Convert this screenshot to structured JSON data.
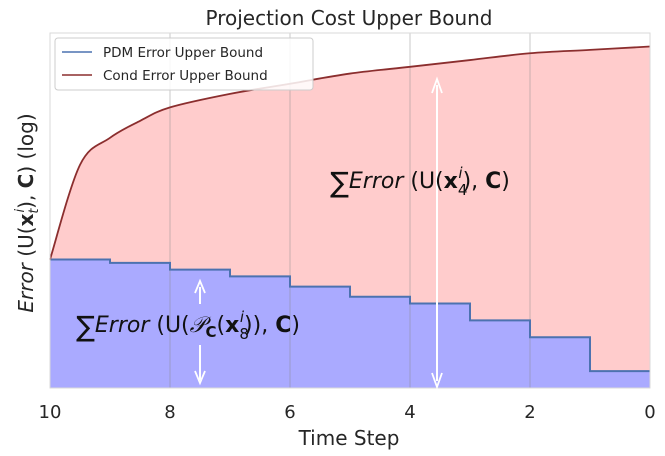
{
  "chart_data": {
    "type": "area",
    "title": "Projection Cost Upper Bound",
    "xlabel": "Time Step",
    "ylabel": "Error (U(x_t^i), C) (log)",
    "xlim": [
      10,
      0
    ],
    "x_ticks": [
      "10",
      "8",
      "6",
      "4",
      "2",
      "0"
    ],
    "y_scale": "log",
    "grid": "vertical",
    "legend_position": "top-left",
    "series": [
      {
        "name": "PDM Error Upper Bound",
        "color": "#4c72b0",
        "fill": "#aaaaff",
        "step": true,
        "x": [
          10,
          9,
          8,
          7,
          6,
          5,
          4,
          3,
          2,
          1,
          0
        ],
        "values": [
          0.38,
          0.37,
          0.35,
          0.33,
          0.3,
          0.27,
          0.25,
          0.2,
          0.15,
          0.05,
          0.05
        ]
      },
      {
        "name": "Cond Error Upper Bound",
        "color": "#8b2e2e",
        "fill": "#ffcccc",
        "step": false,
        "x": [
          10,
          9.5,
          9,
          8.5,
          8,
          7,
          6,
          5,
          4,
          3,
          2,
          1,
          0
        ],
        "values": [
          0.38,
          0.66,
          0.74,
          0.79,
          0.83,
          0.87,
          0.9,
          0.93,
          0.95,
          0.97,
          0.99,
          1.0,
          1.01
        ]
      }
    ],
    "annotations": [
      {
        "text_parts": [
          "∑",
          "Error",
          " (U(",
          "x",
          "4",
          "i",
          "), ",
          "C",
          ")"
        ],
        "at_x": 3.5
      },
      {
        "text_parts": [
          "∑",
          "Error",
          " (U(",
          "𝒫",
          "C",
          "(",
          "x",
          "8",
          "i",
          ")), ",
          "C",
          ")"
        ],
        "at_x": 7.5
      }
    ]
  }
}
